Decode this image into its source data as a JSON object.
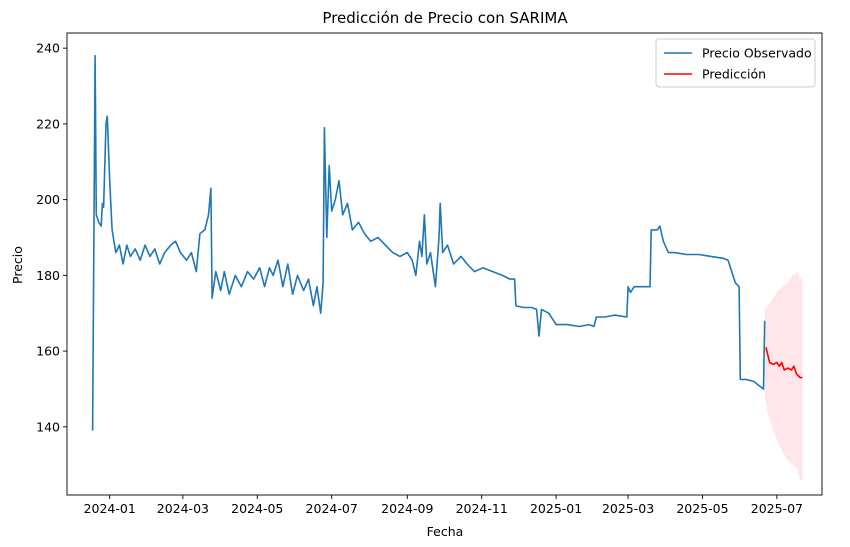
{
  "chart_data": {
    "type": "line",
    "title": "Predicción de Precio con SARIMA",
    "xlabel": "Fecha",
    "ylabel": "Precio",
    "xlim": [
      "2023-11-27",
      "2025-08-07"
    ],
    "ylim": [
      122,
      244
    ],
    "grid": false,
    "legend_position": "top-right",
    "x_ticks": [
      "2024-01",
      "2024-03",
      "2024-05",
      "2024-07",
      "2024-09",
      "2024-11",
      "2025-01",
      "2025-03",
      "2025-05",
      "2025-07"
    ],
    "y_ticks": [
      140,
      160,
      180,
      200,
      220,
      240
    ],
    "series": [
      {
        "name": "Precio Observado",
        "color": "#1f77b4",
        "points": [
          [
            "2023-12-18",
            139
          ],
          [
            "2023-12-20",
            238
          ],
          [
            "2023-12-21",
            196
          ],
          [
            "2023-12-23",
            194
          ],
          [
            "2023-12-25",
            193
          ],
          [
            "2023-12-26",
            199
          ],
          [
            "2023-12-27",
            198
          ],
          [
            "2023-12-29",
            220
          ],
          [
            "2023-12-30",
            222
          ],
          [
            "2024-01-01",
            205
          ],
          [
            "2024-01-03",
            192
          ],
          [
            "2024-01-06",
            186
          ],
          [
            "2024-01-09",
            188
          ],
          [
            "2024-01-12",
            183
          ],
          [
            "2024-01-15",
            188
          ],
          [
            "2024-01-18",
            185
          ],
          [
            "2024-01-22",
            187
          ],
          [
            "2024-01-26",
            184
          ],
          [
            "2024-01-30",
            188
          ],
          [
            "2024-02-03",
            185
          ],
          [
            "2024-02-07",
            187
          ],
          [
            "2024-02-11",
            183
          ],
          [
            "2024-02-15",
            186
          ],
          [
            "2024-02-20",
            188
          ],
          [
            "2024-02-24",
            189
          ],
          [
            "2024-02-28",
            186
          ],
          [
            "2024-03-04",
            184
          ],
          [
            "2024-03-08",
            186
          ],
          [
            "2024-03-12",
            181
          ],
          [
            "2024-03-15",
            191
          ],
          [
            "2024-03-19",
            192
          ],
          [
            "2024-03-22",
            196
          ],
          [
            "2024-03-24",
            203
          ],
          [
            "2024-03-25",
            174
          ],
          [
            "2024-03-28",
            181
          ],
          [
            "2024-04-01",
            176
          ],
          [
            "2024-04-04",
            181
          ],
          [
            "2024-04-08",
            175
          ],
          [
            "2024-04-13",
            180
          ],
          [
            "2024-04-18",
            177
          ],
          [
            "2024-04-23",
            181
          ],
          [
            "2024-04-28",
            179
          ],
          [
            "2024-05-03",
            182
          ],
          [
            "2024-05-07",
            177
          ],
          [
            "2024-05-11",
            182
          ],
          [
            "2024-05-14",
            180
          ],
          [
            "2024-05-18",
            184
          ],
          [
            "2024-05-22",
            177
          ],
          [
            "2024-05-26",
            183
          ],
          [
            "2024-05-30",
            175
          ],
          [
            "2024-06-03",
            180
          ],
          [
            "2024-06-08",
            176
          ],
          [
            "2024-06-12",
            179
          ],
          [
            "2024-06-16",
            172
          ],
          [
            "2024-06-19",
            177
          ],
          [
            "2024-06-22",
            170
          ],
          [
            "2024-06-24",
            178
          ],
          [
            "2024-06-25",
            219
          ],
          [
            "2024-06-27",
            190
          ],
          [
            "2024-06-29",
            209
          ],
          [
            "2024-07-01",
            197
          ],
          [
            "2024-07-04",
            200
          ],
          [
            "2024-07-07",
            205
          ],
          [
            "2024-07-10",
            196
          ],
          [
            "2024-07-14",
            199
          ],
          [
            "2024-07-18",
            192
          ],
          [
            "2024-07-23",
            194
          ],
          [
            "2024-07-28",
            191
          ],
          [
            "2024-08-02",
            189
          ],
          [
            "2024-08-08",
            190
          ],
          [
            "2024-08-14",
            188
          ],
          [
            "2024-08-20",
            186
          ],
          [
            "2024-08-26",
            185
          ],
          [
            "2024-09-01",
            186
          ],
          [
            "2024-09-05",
            184
          ],
          [
            "2024-09-08",
            180
          ],
          [
            "2024-09-11",
            189
          ],
          [
            "2024-09-13",
            185
          ],
          [
            "2024-09-15",
            196
          ],
          [
            "2024-09-17",
            183
          ],
          [
            "2024-09-20",
            186
          ],
          [
            "2024-09-24",
            177
          ],
          [
            "2024-09-27",
            190
          ],
          [
            "2024-09-28",
            199
          ],
          [
            "2024-09-30",
            186
          ],
          [
            "2024-10-04",
            188
          ],
          [
            "2024-10-09",
            183
          ],
          [
            "2024-10-15",
            185
          ],
          [
            "2024-10-20",
            183
          ],
          [
            "2024-10-26",
            181
          ],
          [
            "2024-11-02",
            182
          ],
          [
            "2024-11-10",
            181
          ],
          [
            "2024-11-18",
            180
          ],
          [
            "2024-11-24",
            179
          ],
          [
            "2024-11-28",
            179
          ],
          [
            "2024-11-29",
            172
          ],
          [
            "2024-12-05",
            171.5
          ],
          [
            "2024-12-12",
            171.5
          ],
          [
            "2024-12-16",
            171
          ],
          [
            "2024-12-18",
            164
          ],
          [
            "2024-12-20",
            171
          ],
          [
            "2024-12-26",
            170
          ],
          [
            "2025-01-01",
            167
          ],
          [
            "2025-01-10",
            167
          ],
          [
            "2025-01-20",
            166.5
          ],
          [
            "2025-01-28",
            167
          ],
          [
            "2025-02-01",
            166.5
          ],
          [
            "2025-02-03",
            169
          ],
          [
            "2025-02-10",
            169
          ],
          [
            "2025-02-18",
            169.5
          ],
          [
            "2025-02-28",
            169
          ],
          [
            "2025-03-01",
            177
          ],
          [
            "2025-03-03",
            175.5
          ],
          [
            "2025-03-06",
            177
          ],
          [
            "2025-03-15",
            177
          ],
          [
            "2025-03-19",
            177
          ],
          [
            "2025-03-20",
            192
          ],
          [
            "2025-03-25",
            192
          ],
          [
            "2025-03-27",
            193
          ],
          [
            "2025-03-30",
            189
          ],
          [
            "2025-04-03",
            186
          ],
          [
            "2025-04-08",
            186
          ],
          [
            "2025-04-18",
            185.5
          ],
          [
            "2025-04-28",
            185.5
          ],
          [
            "2025-05-08",
            185
          ],
          [
            "2025-05-18",
            184.5
          ],
          [
            "2025-05-22",
            184
          ],
          [
            "2025-05-25",
            181
          ],
          [
            "2025-05-28",
            178
          ],
          [
            "2025-05-31",
            177
          ],
          [
            "2025-06-01",
            152.5
          ],
          [
            "2025-06-06",
            152.5
          ],
          [
            "2025-06-12",
            152
          ],
          [
            "2025-06-16",
            151
          ],
          [
            "2025-06-20",
            150
          ],
          [
            "2025-06-21",
            168
          ]
        ]
      },
      {
        "name": "Predicción",
        "color": "#ff0000",
        "points": [
          [
            "2025-06-22",
            161
          ],
          [
            "2025-06-24",
            158.5
          ],
          [
            "2025-06-25",
            157
          ],
          [
            "2025-06-28",
            156.5
          ],
          [
            "2025-07-01",
            157
          ],
          [
            "2025-07-03",
            156
          ],
          [
            "2025-07-05",
            157
          ],
          [
            "2025-07-07",
            155
          ],
          [
            "2025-07-10",
            155.5
          ],
          [
            "2025-07-13",
            155
          ],
          [
            "2025-07-15",
            156
          ],
          [
            "2025-07-17",
            154
          ],
          [
            "2025-07-20",
            153
          ],
          [
            "2025-07-22",
            153
          ]
        ]
      }
    ],
    "confidence_band": {
      "color": "#ffc0cb",
      "lower": [
        [
          "2025-06-21",
          148
        ],
        [
          "2025-06-24",
          143
        ],
        [
          "2025-06-28",
          139
        ],
        [
          "2025-07-02",
          136
        ],
        [
          "2025-07-06",
          133
        ],
        [
          "2025-07-10",
          131
        ],
        [
          "2025-07-14",
          130
        ],
        [
          "2025-07-18",
          129
        ],
        [
          "2025-07-20",
          126
        ],
        [
          "2025-07-22",
          126
        ]
      ],
      "upper": [
        [
          "2025-06-21",
          171
        ],
        [
          "2025-06-24",
          172
        ],
        [
          "2025-06-28",
          174
        ],
        [
          "2025-07-02",
          176
        ],
        [
          "2025-07-06",
          177
        ],
        [
          "2025-07-10",
          178
        ],
        [
          "2025-07-14",
          180
        ],
        [
          "2025-07-18",
          181
        ],
        [
          "2025-07-20",
          179
        ],
        [
          "2025-07-22",
          180
        ]
      ]
    }
  }
}
